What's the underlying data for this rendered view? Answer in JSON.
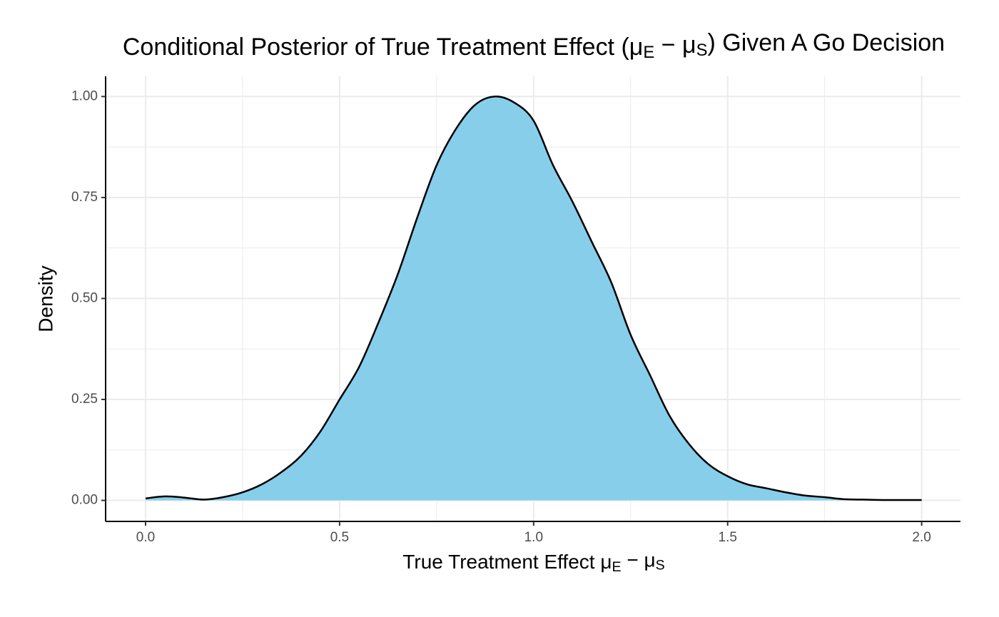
{
  "chart_data": {
    "type": "density",
    "title": [
      "Conditional Posterior of True Treatment Effect (μ",
      "E",
      " − μ",
      "S",
      ") Given A Go Decision"
    ],
    "x_label": [
      "True Treatment Effect μ",
      "E",
      " − μ",
      "S"
    ],
    "y_label": "Density",
    "x": [
      0,
      0.05,
      0.1,
      0.15,
      0.2,
      0.25,
      0.3,
      0.35,
      0.4,
      0.45,
      0.5,
      0.55,
      0.6,
      0.65,
      0.7,
      0.75,
      0.8,
      0.85,
      0.9,
      0.95,
      1.0,
      1.05,
      1.1,
      1.15,
      1.2,
      1.25,
      1.3,
      1.35,
      1.4,
      1.45,
      1.5,
      1.55,
      1.6,
      1.65,
      1.7,
      1.75,
      1.8,
      1.85,
      1.9,
      1.95,
      2.0
    ],
    "values": [
      0.005,
      0.01,
      0.007,
      0.002,
      0.008,
      0.02,
      0.04,
      0.07,
      0.11,
      0.17,
      0.25,
      0.33,
      0.44,
      0.56,
      0.7,
      0.83,
      0.92,
      0.98,
      1.0,
      0.985,
      0.94,
      0.83,
      0.74,
      0.64,
      0.54,
      0.41,
      0.31,
      0.21,
      0.14,
      0.09,
      0.06,
      0.04,
      0.03,
      0.02,
      0.012,
      0.008,
      0.003,
      0.002,
      0.001,
      0.001,
      0.001
    ],
    "color": "#87ceeb",
    "line_color": "#000000",
    "xlim": [
      -0.103,
      2.1
    ],
    "ylim": [
      -0.052,
      1.05
    ],
    "xticks": [
      {
        "value": 0,
        "label": "0.0"
      },
      {
        "value": 0.5,
        "label": "0.5"
      },
      {
        "value": 1,
        "label": "1.0"
      },
      {
        "value": 1.5,
        "label": "1.5"
      },
      {
        "value": 2,
        "label": "2.0"
      }
    ],
    "yticks": [
      {
        "value": 0,
        "label": "0.00"
      },
      {
        "value": 0.25,
        "label": "0.25"
      },
      {
        "value": 0.5,
        "label": "0.50"
      },
      {
        "value": 0.75,
        "label": "0.75"
      },
      {
        "value": 1,
        "label": "1.00"
      }
    ],
    "x_minor_grid": [
      0.25,
      0.75,
      1.25,
      1.75
    ],
    "y_minor_grid": [
      0.125,
      0.375,
      0.625,
      0.875
    ],
    "grid": true
  }
}
